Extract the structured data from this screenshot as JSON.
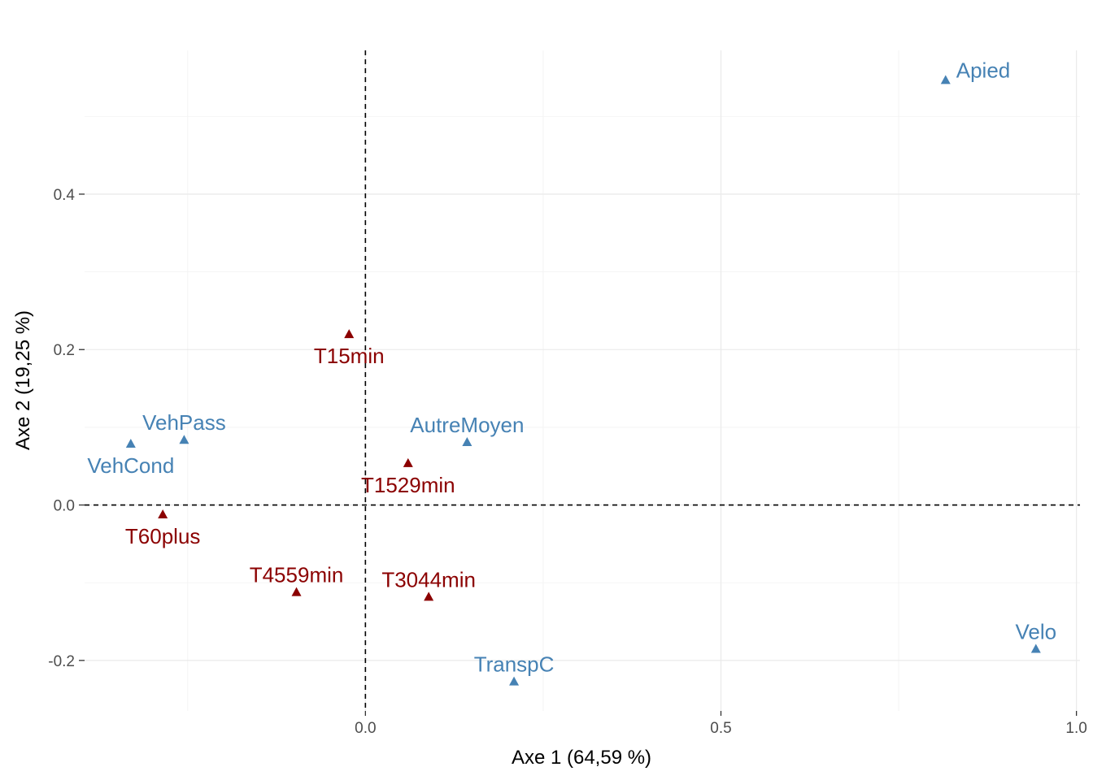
{
  "chart_data": {
    "type": "scatter",
    "title": "",
    "xlabel": "Axe 1 (64,59 %)",
    "ylabel": "Axe 2 (19,25 %)",
    "xlim": [
      -0.395,
      1.005
    ],
    "ylim": [
      -0.265,
      0.585
    ],
    "x_ticks": [
      0.0,
      0.5,
      1.0
    ],
    "x_tick_labels": [
      "0.0",
      "0.5",
      "1.0"
    ],
    "y_ticks": [
      -0.2,
      0.0,
      0.2,
      0.4
    ],
    "y_tick_labels": [
      "-0.2",
      "0.0",
      "0.2",
      "0.4"
    ],
    "grid": true,
    "reference_lines": {
      "x": 0,
      "y": 0,
      "style": "dashed"
    },
    "marker": "triangle",
    "series": [
      {
        "color": "#4682b4",
        "points": [
          {
            "label": "Apied",
            "x": 0.816,
            "y": 0.547,
            "label_position": "right"
          },
          {
            "label": "Velo",
            "x": 0.943,
            "y": -0.185,
            "label_position": "above"
          },
          {
            "label": "TranspC",
            "x": 0.209,
            "y": -0.227,
            "label_position": "above"
          },
          {
            "label": "AutreMoyen",
            "x": 0.143,
            "y": 0.081,
            "label_position": "above"
          },
          {
            "label": "VehPass",
            "x": -0.255,
            "y": 0.084,
            "label_position": "above"
          },
          {
            "label": "VehCond",
            "x": -0.33,
            "y": 0.079,
            "label_position": "below"
          }
        ]
      },
      {
        "color": "#8b0000",
        "points": [
          {
            "label": "T15min",
            "x": -0.023,
            "y": 0.22,
            "label_position": "below"
          },
          {
            "label": "T1529min",
            "x": 0.06,
            "y": 0.054,
            "label_position": "below"
          },
          {
            "label": "T60plus",
            "x": -0.285,
            "y": -0.012,
            "label_position": "below"
          },
          {
            "label": "T4559min",
            "x": -0.097,
            "y": -0.112,
            "label_position": "above"
          },
          {
            "label": "T3044min",
            "x": 0.089,
            "y": -0.118,
            "label_position": "above"
          }
        ]
      }
    ]
  }
}
